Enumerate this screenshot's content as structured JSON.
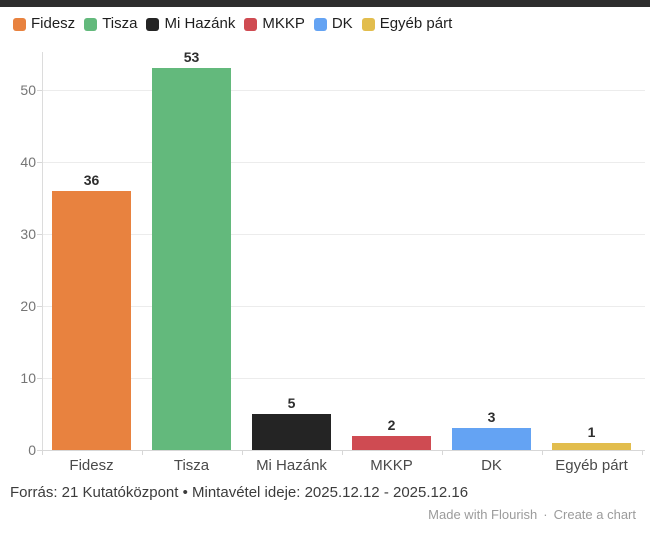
{
  "frame": {
    "top_bar_color": "#2e2e2e",
    "background_color": "#ffffff"
  },
  "legend": {
    "items": [
      {
        "label": "Fidesz",
        "slug": "fidesz",
        "color": "#E8823F"
      },
      {
        "label": "Tisza",
        "slug": "tisza",
        "color": "#63B97C"
      },
      {
        "label": "Mi Hazánk",
        "slug": "mi-hazank",
        "color": "#242424"
      },
      {
        "label": "MKKP",
        "slug": "mkkp",
        "color": "#CF4B52"
      },
      {
        "label": "DK",
        "slug": "dk",
        "color": "#64A3F3"
      },
      {
        "label": "Egyéb párt",
        "slug": "egyeb-part",
        "color": "#E2BD4D"
      }
    ]
  },
  "chart_data": {
    "type": "bar",
    "categories": [
      "Fidesz",
      "Tisza",
      "Mi Hazánk",
      "MKKP",
      "DK",
      "Egyéb párt"
    ],
    "values": [
      36,
      53,
      5,
      2,
      3,
      1
    ],
    "value_labels": [
      "36",
      "53",
      "5",
      "2",
      "3",
      "1"
    ],
    "bar_colors": [
      "#E8823F",
      "#63B97C",
      "#242424",
      "#CF4B52",
      "#64A3F3",
      "#E2BD4D"
    ],
    "slugs": [
      "fidesz",
      "tisza",
      "mi-hazank",
      "mkkp",
      "dk",
      "egyeb-part"
    ],
    "title": "",
    "xlabel": "",
    "ylabel": "",
    "ylim": [
      0,
      55
    ],
    "yticks": [
      0,
      10,
      20,
      30,
      40,
      50
    ],
    "grid": true,
    "legend_position": "top"
  },
  "footer": {
    "source": "Forrás: 21 Kutatóközpont • Mintavétel ideje: 2025.12.12 - 2025.12.16",
    "credit": {
      "made_with": "Made with Flourish",
      "separator": "·",
      "create": "Create a chart"
    }
  }
}
